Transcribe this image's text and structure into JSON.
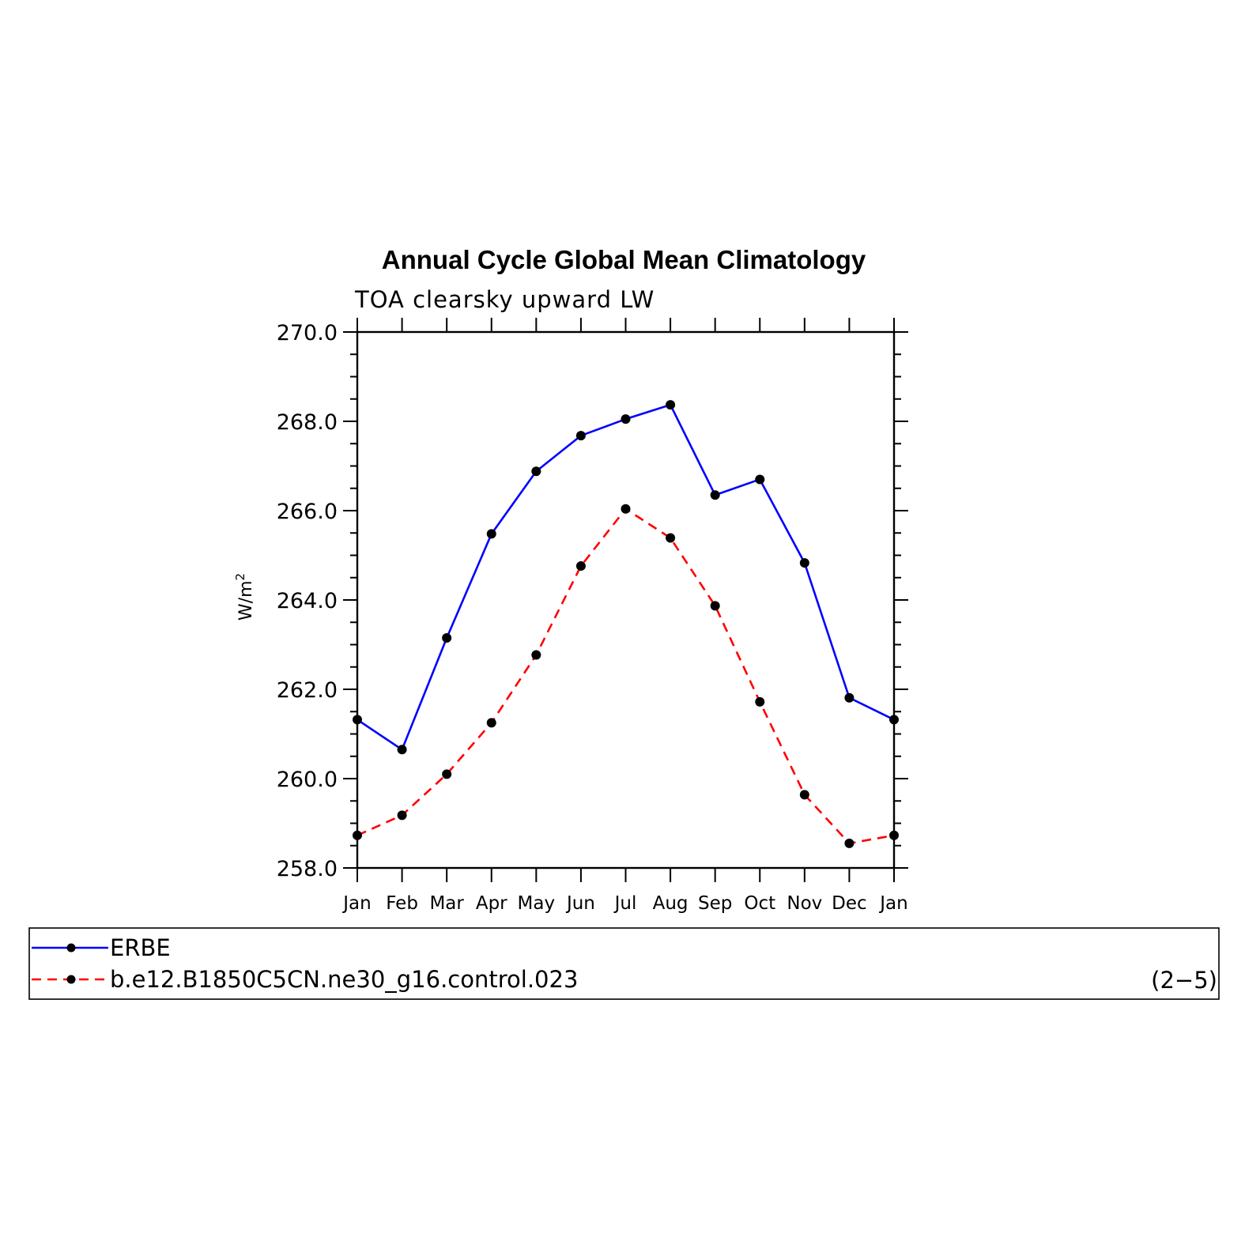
{
  "chart_data": {
    "type": "line",
    "title": "Annual Cycle Global Mean Climatology",
    "subtitle": "TOA clearsky upward LW",
    "ylabel": "W/m",
    "ylabel_sup": "2",
    "categories": [
      "Jan",
      "Feb",
      "Mar",
      "Apr",
      "May",
      "Jun",
      "Jul",
      "Aug",
      "Sep",
      "Oct",
      "Nov",
      "Dec",
      "Jan"
    ],
    "ylim": [
      258.0,
      270.0
    ],
    "yticks": [
      258.0,
      260.0,
      262.0,
      264.0,
      266.0,
      268.0,
      270.0
    ],
    "ytick_labels": [
      "258.0",
      "260.0",
      "262.0",
      "264.0",
      "266.0",
      "268.0",
      "270.0"
    ],
    "series": [
      {
        "name": "ERBE",
        "color": "#0000ff",
        "dash": "solid",
        "values": [
          261.32,
          260.65,
          263.15,
          265.48,
          266.88,
          267.68,
          268.05,
          268.37,
          266.35,
          266.7,
          264.83,
          261.81,
          261.32
        ]
      },
      {
        "name": "b.e12.B1850C5CN.ne30_g16.control.023",
        "color": "#ff0000",
        "dash": "dashed",
        "values": [
          258.73,
          259.18,
          260.1,
          261.25,
          262.77,
          264.76,
          266.04,
          265.39,
          263.87,
          261.72,
          259.64,
          258.55,
          258.73
        ]
      }
    ],
    "marker_color": "#000000",
    "legend_position": "bottom",
    "grid": false
  },
  "panel_label": "(2−5)"
}
